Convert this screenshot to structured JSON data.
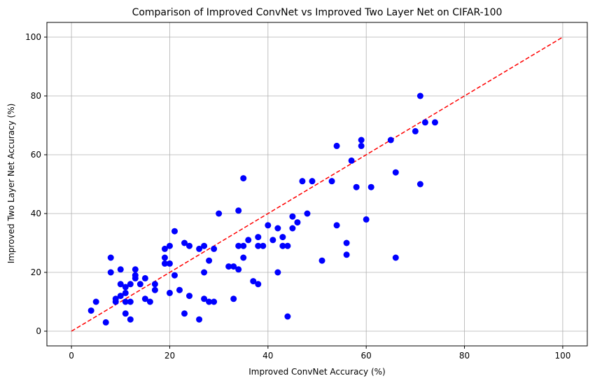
{
  "chart_data": {
    "type": "scatter",
    "title": "Comparison of Improved ConvNet vs Improved Two Layer Net on CIFAR-100",
    "xlabel": "Improved ConvNet Accuracy (%)",
    "ylabel": "Improved Two Layer Net Accuracy (%)",
    "xlim": [
      -5,
      105
    ],
    "ylim": [
      -5,
      105
    ],
    "xticks": [
      0,
      20,
      40,
      60,
      80,
      100
    ],
    "yticks": [
      0,
      20,
      40,
      60,
      80,
      100
    ],
    "grid": true,
    "colors": {
      "points": "#0000ff",
      "reference_line": "#ff0000",
      "grid": "#b0b0b0"
    },
    "reference_line": {
      "style": "dashed",
      "from": [
        0,
        0
      ],
      "to": [
        100,
        100
      ]
    },
    "points": [
      [
        4,
        7
      ],
      [
        5,
        10
      ],
      [
        7,
        3
      ],
      [
        8,
        25
      ],
      [
        8,
        20
      ],
      [
        9,
        10
      ],
      [
        9,
        11
      ],
      [
        10,
        21
      ],
      [
        10,
        16
      ],
      [
        10,
        12
      ],
      [
        11,
        15
      ],
      [
        11,
        13
      ],
      [
        11,
        6
      ],
      [
        11,
        10
      ],
      [
        12,
        10
      ],
      [
        12,
        16
      ],
      [
        12,
        4
      ],
      [
        13,
        21
      ],
      [
        13,
        19
      ],
      [
        13,
        18
      ],
      [
        14,
        16
      ],
      [
        15,
        18
      ],
      [
        15,
        11
      ],
      [
        16,
        10
      ],
      [
        17,
        16
      ],
      [
        17,
        14
      ],
      [
        19,
        28
      ],
      [
        19,
        25
      ],
      [
        19,
        23
      ],
      [
        20,
        29
      ],
      [
        20,
        23
      ],
      [
        20,
        13
      ],
      [
        21,
        34
      ],
      [
        21,
        19
      ],
      [
        22,
        14
      ],
      [
        23,
        30
      ],
      [
        23,
        6
      ],
      [
        24,
        29
      ],
      [
        24,
        12
      ],
      [
        26,
        28
      ],
      [
        26,
        4
      ],
      [
        27,
        29
      ],
      [
        27,
        20
      ],
      [
        27,
        11
      ],
      [
        28,
        24
      ],
      [
        28,
        10
      ],
      [
        29,
        28
      ],
      [
        29,
        10
      ],
      [
        30,
        40
      ],
      [
        32,
        22
      ],
      [
        33,
        22
      ],
      [
        33,
        11
      ],
      [
        34,
        41
      ],
      [
        34,
        29
      ],
      [
        34,
        21
      ],
      [
        35,
        52
      ],
      [
        35,
        29
      ],
      [
        35,
        25
      ],
      [
        36,
        31
      ],
      [
        37,
        17
      ],
      [
        38,
        32
      ],
      [
        38,
        29
      ],
      [
        38,
        16
      ],
      [
        39,
        29
      ],
      [
        40,
        36
      ],
      [
        41,
        31
      ],
      [
        42,
        35
      ],
      [
        42,
        20
      ],
      [
        43,
        32
      ],
      [
        43,
        29
      ],
      [
        44,
        29
      ],
      [
        44,
        5
      ],
      [
        45,
        39
      ],
      [
        45,
        35
      ],
      [
        46,
        37
      ],
      [
        47,
        51
      ],
      [
        48,
        40
      ],
      [
        49,
        51
      ],
      [
        51,
        24
      ],
      [
        53,
        51
      ],
      [
        54,
        63
      ],
      [
        54,
        36
      ],
      [
        56,
        30
      ],
      [
        56,
        26
      ],
      [
        57,
        58
      ],
      [
        58,
        49
      ],
      [
        59,
        65
      ],
      [
        59,
        63
      ],
      [
        60,
        38
      ],
      [
        61,
        49
      ],
      [
        65,
        65
      ],
      [
        66,
        54
      ],
      [
        66,
        25
      ],
      [
        70,
        68
      ],
      [
        71,
        80
      ],
      [
        71,
        50
      ],
      [
        72,
        71
      ],
      [
        74,
        71
      ]
    ]
  }
}
